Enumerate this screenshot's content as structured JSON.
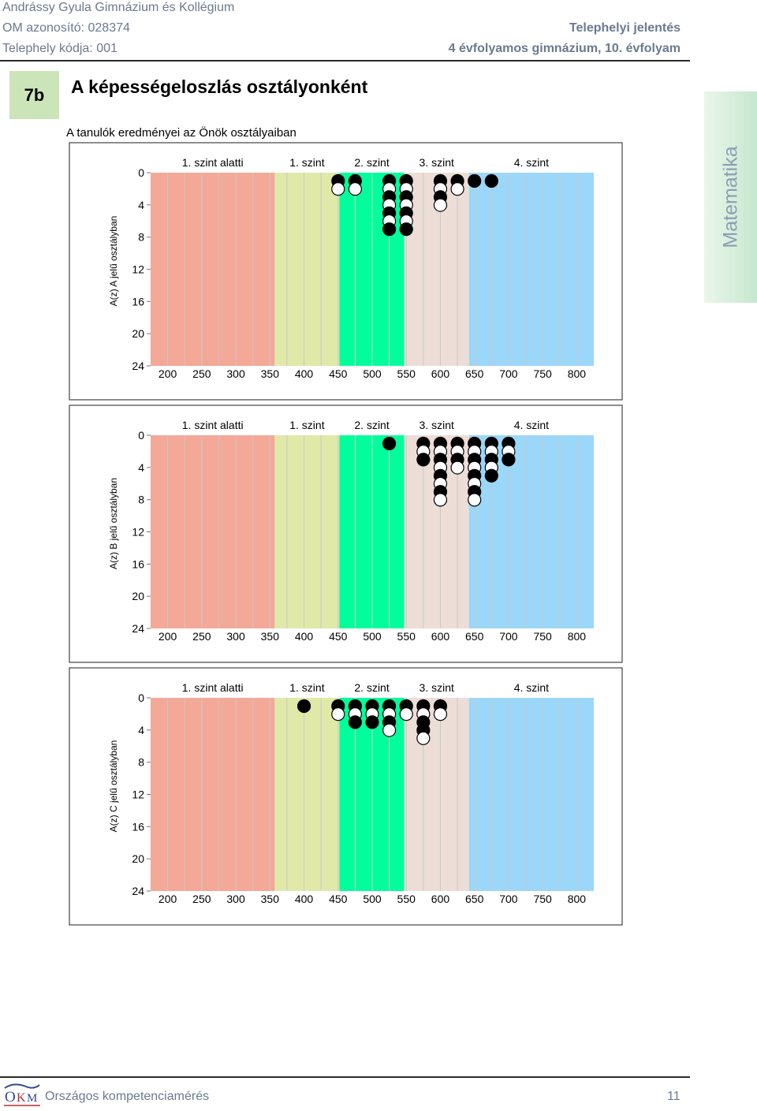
{
  "header": {
    "school": "Andrássy Gyula Gimnázium és Kollégium",
    "om": "OM azonosító: 028374",
    "site_code": "Telephely kódja: 001",
    "report_type": "Telephelyi jelentés",
    "grade_info": "4 évfolyamos gimnázium, 10. évfolyam"
  },
  "section": {
    "badge": "7b",
    "title": "A képességeloszlás osztályonként",
    "subtitle": "A tanulók eredményei az Önök osztályaiban",
    "side_tab": "Matematika"
  },
  "footer": {
    "org": "Országos kompetenciamérés",
    "page": "11"
  },
  "colors": {
    "level0": "#f4a898",
    "level1": "#e1e9a8",
    "level2": "#00ff9c",
    "level3": "#ecddd6",
    "level4": "#9bd7f8",
    "grid": "#c8c8c8",
    "frame": "#444444"
  },
  "chart_data": [
    {
      "type": "scatter",
      "ylabel": "A(z) A jelű osztályban",
      "x_ticks": [
        "200",
        "250",
        "300",
        "350",
        "400",
        "450",
        "500",
        "550",
        "600",
        "650",
        "700",
        "750",
        "800"
      ],
      "y_ticks": [
        "0",
        "4",
        "8",
        "12",
        "16",
        "20",
        "24"
      ],
      "xlim": [
        175,
        825
      ],
      "ylim": [
        0,
        24
      ],
      "levels": [
        {
          "label": "1. szint alatti",
          "from": 175,
          "to": 357
        },
        {
          "label": "1. szint",
          "from": 357,
          "to": 452
        },
        {
          "label": "2. szint",
          "from": 452,
          "to": 547
        },
        {
          "label": "3. szint",
          "from": 547,
          "to": 642
        },
        {
          "label": "4. szint",
          "from": 642,
          "to": 825
        }
      ],
      "columns": [
        {
          "x": 450,
          "dots": [
            "boy",
            "girl"
          ]
        },
        {
          "x": 475,
          "dots": [
            "boy",
            "girl"
          ]
        },
        {
          "x": 525,
          "dots": [
            "boy",
            "girl",
            "boy",
            "girl",
            "boy",
            "girl",
            "boy"
          ]
        },
        {
          "x": 550,
          "dots": [
            "boy",
            "girl",
            "boy",
            "girl",
            "boy",
            "girl",
            "boy"
          ]
        },
        {
          "x": 600,
          "dots": [
            "boy",
            "girl",
            "boy",
            "girl"
          ]
        },
        {
          "x": 625,
          "dots": [
            "boy",
            "girl"
          ]
        },
        {
          "x": 650,
          "dots": [
            "boy"
          ]
        },
        {
          "x": 675,
          "dots": [
            "boy"
          ]
        }
      ]
    },
    {
      "type": "scatter",
      "ylabel": "A(z) B jelű osztályban",
      "x_ticks": [
        "200",
        "250",
        "300",
        "350",
        "400",
        "450",
        "500",
        "550",
        "600",
        "650",
        "700",
        "750",
        "800"
      ],
      "y_ticks": [
        "0",
        "4",
        "8",
        "12",
        "16",
        "20",
        "24"
      ],
      "xlim": [
        175,
        825
      ],
      "ylim": [
        0,
        24
      ],
      "levels": [
        {
          "label": "1. szint alatti",
          "from": 175,
          "to": 357
        },
        {
          "label": "1. szint",
          "from": 357,
          "to": 452
        },
        {
          "label": "2. szint",
          "from": 452,
          "to": 547
        },
        {
          "label": "3. szint",
          "from": 547,
          "to": 642
        },
        {
          "label": "4. szint",
          "from": 642,
          "to": 825
        }
      ],
      "columns": [
        {
          "x": 525,
          "dots": [
            "boy"
          ]
        },
        {
          "x": 575,
          "dots": [
            "boy",
            "girl",
            "boy"
          ]
        },
        {
          "x": 600,
          "dots": [
            "boy",
            "girl",
            "boy",
            "girl",
            "boy",
            "girl",
            "boy",
            "girl"
          ]
        },
        {
          "x": 625,
          "dots": [
            "boy",
            "girl",
            "boy",
            "girl"
          ]
        },
        {
          "x": 650,
          "dots": [
            "boy",
            "girl",
            "boy",
            "girl",
            "boy",
            "girl",
            "boy",
            "girl"
          ]
        },
        {
          "x": 675,
          "dots": [
            "boy",
            "girl",
            "boy",
            "girl",
            "boy"
          ]
        },
        {
          "x": 700,
          "dots": [
            "boy",
            "girl",
            "boy"
          ]
        }
      ]
    },
    {
      "type": "scatter",
      "ylabel": "A(z) C jelű osztályban",
      "x_ticks": [
        "200",
        "250",
        "300",
        "350",
        "400",
        "450",
        "500",
        "550",
        "600",
        "650",
        "700",
        "750",
        "800"
      ],
      "y_ticks": [
        "0",
        "4",
        "8",
        "12",
        "16",
        "20",
        "24"
      ],
      "xlim": [
        175,
        825
      ],
      "ylim": [
        0,
        24
      ],
      "levels": [
        {
          "label": "1. szint alatti",
          "from": 175,
          "to": 357
        },
        {
          "label": "1. szint",
          "from": 357,
          "to": 452
        },
        {
          "label": "2. szint",
          "from": 452,
          "to": 547
        },
        {
          "label": "3. szint",
          "from": 547,
          "to": 642
        },
        {
          "label": "4. szint",
          "from": 642,
          "to": 825
        }
      ],
      "columns": [
        {
          "x": 400,
          "dots": [
            "boy"
          ]
        },
        {
          "x": 450,
          "dots": [
            "boy",
            "girl"
          ]
        },
        {
          "x": 475,
          "dots": [
            "boy",
            "girl",
            "boy"
          ]
        },
        {
          "x": 500,
          "dots": [
            "boy",
            "girl",
            "boy"
          ]
        },
        {
          "x": 525,
          "dots": [
            "boy",
            "girl",
            "boy",
            "girl"
          ]
        },
        {
          "x": 550,
          "dots": [
            "boy",
            "girl"
          ]
        },
        {
          "x": 575,
          "dots": [
            "boy",
            "girl",
            "boy",
            "boy",
            "girl"
          ]
        },
        {
          "x": 600,
          "dots": [
            "boy",
            "girl"
          ]
        }
      ]
    }
  ]
}
